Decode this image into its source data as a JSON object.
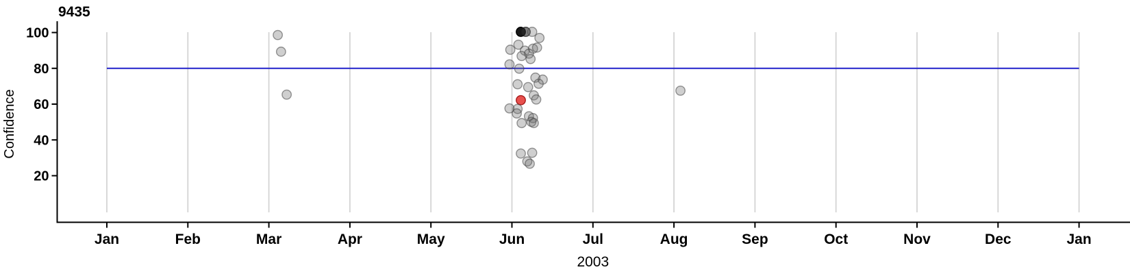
{
  "chart_data": {
    "type": "scatter",
    "title": "9435",
    "xlabel": "2003",
    "ylabel": "Confidence",
    "x_tick_labels": [
      "Jan",
      "Feb",
      "Mar",
      "Apr",
      "May",
      "Jun",
      "Jul",
      "Aug",
      "Sep",
      "Oct",
      "Nov",
      "Dec",
      "Jan"
    ],
    "y_ticks": [
      20,
      40,
      60,
      80,
      100
    ],
    "ylim": [
      -5,
      107
    ],
    "xlim_months": [
      0,
      12
    ],
    "grid": "vertical-month-gridlines",
    "legend": "none",
    "reference_line": {
      "y": 80,
      "color": "#2121cc",
      "x_from_month": 0,
      "x_to_month": 12
    },
    "gridline_color": "#d4d4d4",
    "axis_color": "#000000",
    "point_colors": {
      "gray": {
        "fill": "rgba(110,110,110,0.33)",
        "stroke": "rgba(70,70,70,0.55)"
      },
      "darkgray": {
        "fill": "rgba(45,45,45,0.60)",
        "stroke": "rgba(25,25,25,0.75)"
      },
      "black": {
        "fill": "rgba(5,5,5,0.92)",
        "stroke": "#000000"
      },
      "red": {
        "fill": "rgba(229,57,53,0.88)",
        "stroke": "#a61b1b"
      }
    },
    "points": [
      {
        "month": 2.11,
        "confidence": 98.6,
        "color": "gray"
      },
      {
        "month": 2.15,
        "confidence": 89.3,
        "color": "gray"
      },
      {
        "month": 2.22,
        "confidence": 65.3,
        "color": "gray"
      },
      {
        "month": 5.11,
        "confidence": 100.4,
        "color": "black"
      },
      {
        "month": 5.17,
        "confidence": 100.4,
        "color": "darkgray"
      },
      {
        "month": 5.25,
        "confidence": 100.4,
        "color": "gray"
      },
      {
        "month": 5.34,
        "confidence": 97.0,
        "color": "gray"
      },
      {
        "month": 5.08,
        "confidence": 93.2,
        "color": "gray"
      },
      {
        "month": 5.26,
        "confidence": 91.0,
        "color": "gray"
      },
      {
        "month": 5.31,
        "confidence": 91.6,
        "color": "gray"
      },
      {
        "month": 4.98,
        "confidence": 90.4,
        "color": "gray"
      },
      {
        "month": 5.16,
        "confidence": 89.9,
        "color": "gray"
      },
      {
        "month": 5.21,
        "confidence": 88.2,
        "color": "gray"
      },
      {
        "month": 5.12,
        "confidence": 86.9,
        "color": "gray"
      },
      {
        "month": 5.23,
        "confidence": 85.2,
        "color": "gray"
      },
      {
        "month": 4.97,
        "confidence": 82.2,
        "color": "gray"
      },
      {
        "month": 5.09,
        "confidence": 79.8,
        "color": "gray"
      },
      {
        "month": 5.29,
        "confidence": 74.8,
        "color": "gray"
      },
      {
        "month": 5.38,
        "confidence": 73.7,
        "color": "gray"
      },
      {
        "month": 5.33,
        "confidence": 71.4,
        "color": "gray"
      },
      {
        "month": 5.07,
        "confidence": 71.1,
        "color": "gray"
      },
      {
        "month": 5.2,
        "confidence": 69.5,
        "color": "gray"
      },
      {
        "month": 5.27,
        "confidence": 64.9,
        "color": "gray"
      },
      {
        "month": 5.3,
        "confidence": 62.6,
        "color": "gray"
      },
      {
        "month": 5.11,
        "confidence": 62.2,
        "color": "red"
      },
      {
        "month": 4.97,
        "confidence": 57.6,
        "color": "gray"
      },
      {
        "month": 5.07,
        "confidence": 57.3,
        "color": "gray"
      },
      {
        "month": 5.06,
        "confidence": 54.8,
        "color": "gray"
      },
      {
        "month": 5.21,
        "confidence": 53.2,
        "color": "gray"
      },
      {
        "month": 5.26,
        "confidence": 52.2,
        "color": "gray"
      },
      {
        "month": 5.24,
        "confidence": 50.1,
        "color": "gray"
      },
      {
        "month": 5.12,
        "confidence": 49.4,
        "color": "gray"
      },
      {
        "month": 5.27,
        "confidence": 49.4,
        "color": "gray"
      },
      {
        "month": 5.11,
        "confidence": 32.4,
        "color": "gray"
      },
      {
        "month": 5.25,
        "confidence": 32.8,
        "color": "gray"
      },
      {
        "month": 5.19,
        "confidence": 28.0,
        "color": "gray"
      },
      {
        "month": 5.22,
        "confidence": 26.7,
        "color": "gray"
      },
      {
        "month": 7.08,
        "confidence": 67.5,
        "color": "gray"
      }
    ]
  }
}
